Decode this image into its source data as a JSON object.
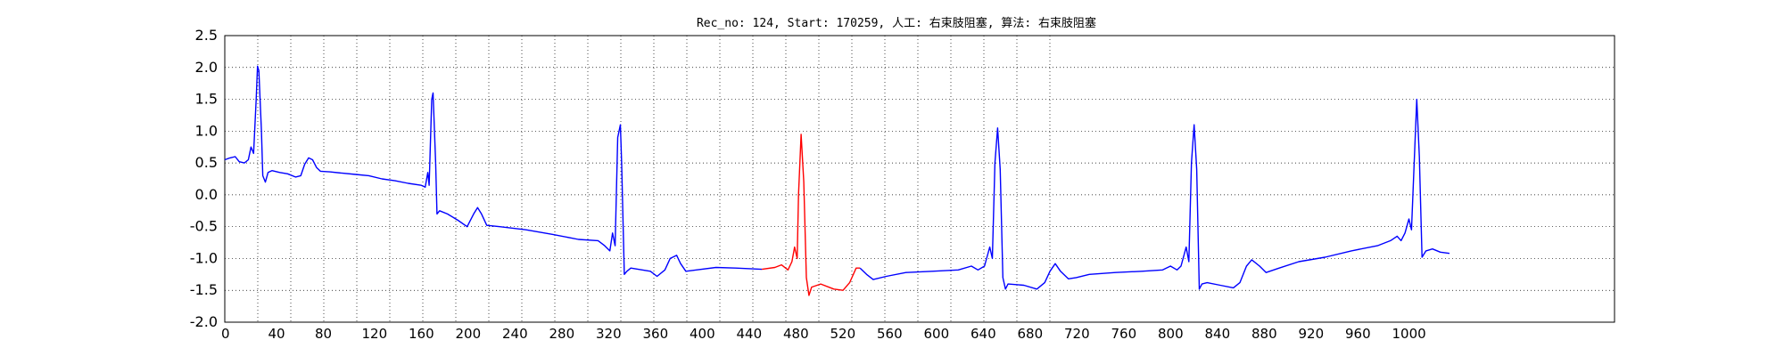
{
  "chart_data": {
    "type": "line",
    "title": "Rec_no: 124, Start: 170259, 人工: 右束肢阻塞, 算法: 右束肢阻塞",
    "xlabel": "",
    "ylabel": "",
    "xlim": [
      0,
      1000
    ],
    "ylim": [
      -2.0,
      2.5
    ],
    "grid": true,
    "x_tick_values": [
      0,
      40,
      80,
      120,
      160,
      200,
      240,
      280,
      320,
      360,
      400,
      440,
      480,
      520,
      560,
      600,
      640,
      680,
      720,
      760,
      800,
      840,
      880,
      920,
      960,
      1000
    ],
    "x_tick_labels": [
      "0",
      "40",
      "80",
      "120",
      "160",
      "200",
      "240",
      "280",
      "320",
      "360",
      "400",
      "440",
      "480",
      "520",
      "560",
      "600",
      "640",
      "680",
      "720",
      "760",
      "800",
      "840",
      "880",
      "920",
      "960",
      "1000"
    ],
    "y_ticks": [
      "2.5",
      "2.0",
      "1.5",
      "1.0",
      "0.5",
      "0.0",
      "-0.5",
      "-1.0",
      "-1.5",
      "-2.0"
    ],
    "series_colors": [
      "#0000ff",
      "#ff0000"
    ],
    "series": [
      {
        "color": "#0000ff",
        "points": [
          [
            0,
            0.55
          ],
          [
            4,
            0.58
          ],
          [
            8,
            0.6
          ],
          [
            11,
            0.52
          ],
          [
            15,
            0.5
          ],
          [
            18,
            0.55
          ],
          [
            20,
            0.75
          ],
          [
            22,
            0.65
          ],
          [
            24,
            1.5
          ],
          [
            25,
            2.02
          ],
          [
            26,
            1.95
          ],
          [
            28,
            1.0
          ],
          [
            29,
            0.3
          ],
          [
            31,
            0.2
          ],
          [
            33,
            0.35
          ],
          [
            36,
            0.38
          ],
          [
            42,
            0.35
          ],
          [
            48,
            0.33
          ],
          [
            54,
            0.28
          ],
          [
            58,
            0.3
          ],
          [
            61,
            0.48
          ],
          [
            64,
            0.58
          ],
          [
            67,
            0.55
          ],
          [
            70,
            0.43
          ],
          [
            73,
            0.37
          ],
          [
            80,
            0.36
          ],
          [
            90,
            0.34
          ],
          [
            100,
            0.32
          ],
          [
            110,
            0.3
          ],
          [
            120,
            0.25
          ],
          [
            130,
            0.22
          ],
          [
            140,
            0.18
          ],
          [
            150,
            0.15
          ],
          [
            153,
            0.12
          ],
          [
            155,
            0.35
          ],
          [
            156,
            0.15
          ],
          [
            158,
            1.5
          ],
          [
            159,
            1.6
          ],
          [
            161,
            0.5
          ],
          [
            162,
            -0.3
          ],
          [
            164,
            -0.25
          ],
          [
            170,
            -0.3
          ],
          [
            178,
            -0.4
          ],
          [
            185,
            -0.5
          ],
          [
            190,
            -0.3
          ],
          [
            193,
            -0.2
          ],
          [
            196,
            -0.3
          ],
          [
            200,
            -0.48
          ],
          [
            210,
            -0.5
          ],
          [
            230,
            -0.55
          ],
          [
            250,
            -0.62
          ],
          [
            270,
            -0.7
          ],
          [
            285,
            -0.72
          ],
          [
            290,
            -0.8
          ],
          [
            294,
            -0.88
          ],
          [
            296,
            -0.6
          ],
          [
            298,
            -0.8
          ],
          [
            300,
            0.9
          ],
          [
            302,
            1.1
          ],
          [
            303,
            0.5
          ],
          [
            305,
            -1.25
          ],
          [
            307,
            -1.2
          ],
          [
            310,
            -1.15
          ],
          [
            325,
            -1.2
          ],
          [
            330,
            -1.28
          ],
          [
            336,
            -1.18
          ],
          [
            340,
            -1.0
          ],
          [
            345,
            -0.95
          ],
          [
            348,
            -1.08
          ],
          [
            352,
            -1.2
          ],
          [
            360,
            -1.18
          ],
          [
            375,
            -1.14
          ],
          [
            390,
            -1.15
          ],
          [
            410,
            -1.17
          ]
        ]
      },
      {
        "color": "#ff0000",
        "points": [
          [
            410,
            -1.17
          ],
          [
            420,
            -1.14
          ],
          [
            425,
            -1.1
          ],
          [
            430,
            -1.18
          ],
          [
            433,
            -1.05
          ],
          [
            435,
            -0.82
          ],
          [
            437,
            -1.0
          ],
          [
            438,
            0.0
          ],
          [
            440,
            0.95
          ],
          [
            442,
            0.2
          ],
          [
            444,
            -1.3
          ],
          [
            446,
            -1.58
          ],
          [
            448,
            -1.45
          ],
          [
            455,
            -1.4
          ],
          [
            465,
            -1.48
          ],
          [
            472,
            -1.5
          ],
          [
            477,
            -1.38
          ],
          [
            482,
            -1.15
          ],
          [
            485,
            -1.15
          ]
        ]
      },
      {
        "color": "#0000ff",
        "points": [
          [
            485,
            -1.15
          ],
          [
            490,
            -1.25
          ],
          [
            495,
            -1.33
          ],
          [
            505,
            -1.28
          ],
          [
            520,
            -1.22
          ],
          [
            540,
            -1.2
          ],
          [
            560,
            -1.18
          ],
          [
            570,
            -1.12
          ],
          [
            575,
            -1.18
          ],
          [
            580,
            -1.12
          ],
          [
            584,
            -0.82
          ],
          [
            586,
            -1.0
          ],
          [
            588,
            0.5
          ],
          [
            590,
            1.05
          ],
          [
            592,
            0.4
          ],
          [
            594,
            -1.3
          ],
          [
            596,
            -1.48
          ],
          [
            598,
            -1.4
          ],
          [
            610,
            -1.42
          ],
          [
            620,
            -1.48
          ],
          [
            626,
            -1.38
          ],
          [
            630,
            -1.2
          ],
          [
            634,
            -1.08
          ],
          [
            638,
            -1.2
          ],
          [
            644,
            -1.32
          ],
          [
            650,
            -1.3
          ],
          [
            660,
            -1.25
          ],
          [
            680,
            -1.22
          ],
          [
            700,
            -1.2
          ],
          [
            716,
            -1.18
          ],
          [
            722,
            -1.12
          ],
          [
            727,
            -1.18
          ],
          [
            730,
            -1.12
          ],
          [
            734,
            -0.82
          ],
          [
            736,
            -1.05
          ],
          [
            738,
            0.5
          ],
          [
            740,
            1.1
          ],
          [
            742,
            0.4
          ],
          [
            744,
            -1.48
          ],
          [
            746,
            -1.4
          ],
          [
            750,
            -1.38
          ],
          [
            760,
            -1.42
          ],
          [
            770,
            -1.46
          ],
          [
            775,
            -1.38
          ],
          [
            780,
            -1.12
          ],
          [
            784,
            -1.02
          ],
          [
            790,
            -1.12
          ],
          [
            795,
            -1.22
          ],
          [
            805,
            -1.15
          ],
          [
            820,
            -1.05
          ],
          [
            840,
            -0.98
          ],
          [
            860,
            -0.88
          ],
          [
            880,
            -0.8
          ],
          [
            890,
            -0.72
          ],
          [
            895,
            -0.65
          ],
          [
            898,
            -0.72
          ],
          [
            901,
            -0.6
          ],
          [
            904,
            -0.38
          ],
          [
            906,
            -0.55
          ],
          [
            908,
            0.5
          ],
          [
            910,
            1.5
          ],
          [
            912,
            0.6
          ],
          [
            914,
            -0.98
          ],
          [
            917,
            -0.88
          ],
          [
            922,
            -0.85
          ],
          [
            928,
            -0.9
          ],
          [
            935,
            -0.92
          ]
        ]
      }
    ]
  }
}
